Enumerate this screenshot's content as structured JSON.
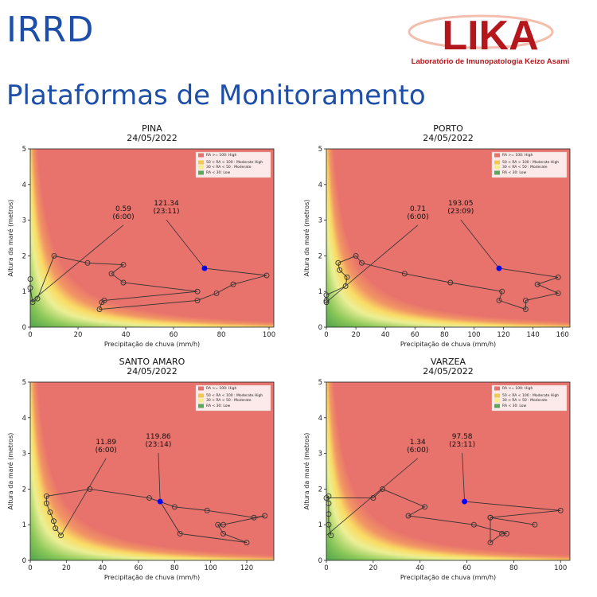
{
  "header": {
    "title": "IRRD",
    "subtitle": "Plataformas de Monitoramento"
  },
  "logo": {
    "text": "LIKA",
    "caption": "Laboratório de Imunopatologia Keizo Asami",
    "color": "#b4161b"
  },
  "colors": {
    "high": "#e8726c",
    "moderate_high": "#f2c94c",
    "moderate": "#f5ee8a",
    "low": "#5aa85a",
    "series_line": "#333333",
    "current_point": "#0000ff",
    "title_blue": "#1e4fa8"
  },
  "chart_data": [
    {
      "type": "scatter",
      "title": "PINA\n24/05/2022",
      "xlabel": "Precipitação de chuva (mm/h)",
      "ylabel": "Altura da maré (metros)",
      "xlim": [
        0,
        102
      ],
      "ylim": [
        0,
        5
      ],
      "xticks": [
        0,
        20,
        40,
        60,
        80,
        100
      ],
      "yticks": [
        0,
        1,
        2,
        3,
        4,
        5
      ],
      "legend": {
        "position": "top-right",
        "entries": [
          "RA >= 100: High",
          "50 < RA < 100 : Moderate High",
          "30 < RA < 50 : Moderate",
          "RA < 30: Low"
        ]
      },
      "series": [
        {
          "x": [
            0,
            0,
            1,
            3,
            10,
            24,
            39,
            34,
            39,
            70,
            31,
            30,
            29,
            70,
            78,
            85,
            99,
            73
          ],
          "y": [
            1.35,
            1.1,
            0.7,
            0.8,
            2.0,
            1.8,
            1.75,
            1.5,
            1.25,
            1.0,
            0.75,
            0.7,
            0.5,
            0.75,
            0.95,
            1.2,
            1.45,
            1.65
          ]
        }
      ],
      "annotations": [
        {
          "text": "0.59\n(6:00)",
          "x": 0,
          "y": 0.7,
          "tx": 39,
          "ty": 2.95
        },
        {
          "text": "121.34\n(23:11)",
          "x": 73,
          "y": 1.65,
          "tx": 57,
          "ty": 3.1
        }
      ]
    },
    {
      "type": "scatter",
      "title": "PORTO\n24/05/2022",
      "xlabel": "Precipitação de chuva (mm/h)",
      "ylabel": "Altura da maré (metros)",
      "xlim": [
        0,
        165
      ],
      "ylim": [
        0,
        5
      ],
      "xticks": [
        0,
        20,
        40,
        60,
        80,
        100,
        120,
        140,
        160
      ],
      "yticks": [
        0,
        1,
        2,
        3,
        4,
        5
      ],
      "legend": {
        "position": "top-right",
        "entries": [
          "RA >= 100: High",
          "50 < RA < 100 : Moderate High",
          "30 < RA < 50 : Moderate",
          "RA < 30: Low"
        ]
      },
      "series": [
        {
          "x": [
            0,
            0,
            0,
            13,
            14,
            9,
            8,
            20,
            24,
            53,
            84,
            119,
            117,
            135,
            135,
            157,
            143,
            157,
            117
          ],
          "y": [
            0.75,
            0.7,
            0.9,
            1.15,
            1.4,
            1.6,
            1.8,
            2.0,
            1.8,
            1.5,
            1.25,
            1.0,
            0.75,
            0.5,
            0.75,
            0.95,
            1.2,
            1.4,
            1.65
          ]
        }
      ],
      "annotations": [
        {
          "text": "0.71\n(6:00)",
          "x": 0,
          "y": 0.7,
          "tx": 62,
          "ty": 2.95
        },
        {
          "text": "193.05\n(23:09)",
          "x": 117,
          "y": 1.65,
          "tx": 91,
          "ty": 3.1
        }
      ]
    },
    {
      "type": "scatter",
      "title": "SANTO AMARO\n24/05/2022",
      "xlabel": "Precipitação de chuva (mm/h)",
      "ylabel": "Altura da maré (metros)",
      "xlim": [
        0,
        135
      ],
      "ylim": [
        0,
        5
      ],
      "xticks": [
        0,
        20,
        40,
        60,
        80,
        100,
        120
      ],
      "yticks": [
        0,
        1,
        2,
        3,
        4,
        5
      ],
      "legend": {
        "position": "top-right",
        "entries": [
          "RA >= 100: High",
          "50 < RA < 100 : Moderate High",
          "30 < RA < 50 : Moderate",
          "RA < 30: Low"
        ]
      },
      "series": [
        {
          "x": [
            17,
            14,
            13,
            11,
            9,
            9,
            33,
            66,
            80,
            98,
            124,
            130,
            107,
            104,
            107,
            120,
            83,
            72
          ],
          "y": [
            0.7,
            0.9,
            1.1,
            1.35,
            1.6,
            1.8,
            2.0,
            1.75,
            1.5,
            1.4,
            1.2,
            1.25,
            1.0,
            1.0,
            0.75,
            0.5,
            0.75,
            1.65
          ]
        }
      ],
      "annotations": [
        {
          "text": "11.89\n(6:00)",
          "x": 17,
          "y": 0.7,
          "tx": 42,
          "ty": 2.95
        },
        {
          "text": "119.86\n(23:14)",
          "x": 72,
          "y": 1.65,
          "tx": 71,
          "ty": 3.1
        }
      ]
    },
    {
      "type": "scatter",
      "title": "VARZEA\n24/05/2022",
      "xlabel": "Precipitação de chuva (mm/h)",
      "ylabel": "Altura da maré (metros)",
      "xlim": [
        0,
        104
      ],
      "ylim": [
        0,
        5
      ],
      "xticks": [
        0,
        20,
        40,
        60,
        80,
        100
      ],
      "yticks": [
        0,
        1,
        2,
        3,
        4,
        5
      ],
      "legend": {
        "position": "top-right",
        "entries": [
          "RA >= 100: High",
          "50 < RA < 100 : Moderate High",
          "30 < RA < 50 : Moderate",
          "RA < 30: Low"
        ]
      },
      "series": [
        {
          "x": [
            2,
            1,
            1,
            1,
            1,
            0,
            20,
            24,
            42,
            35,
            63,
            77,
            75,
            70,
            70,
            89,
            70,
            100,
            59
          ],
          "y": [
            0.7,
            1.0,
            1.3,
            1.6,
            1.8,
            1.75,
            1.75,
            2.0,
            1.5,
            1.25,
            1.0,
            0.75,
            0.75,
            0.5,
            1.2,
            1.0,
            1.2,
            1.4,
            1.65
          ]
        }
      ],
      "annotations": [
        {
          "text": "1.34\n(6:00)",
          "x": 0,
          "y": 0.7,
          "tx": 39,
          "ty": 2.95
        },
        {
          "text": "97.58\n(23:11)",
          "x": 59,
          "y": 1.65,
          "tx": 58,
          "ty": 3.1
        }
      ]
    }
  ]
}
